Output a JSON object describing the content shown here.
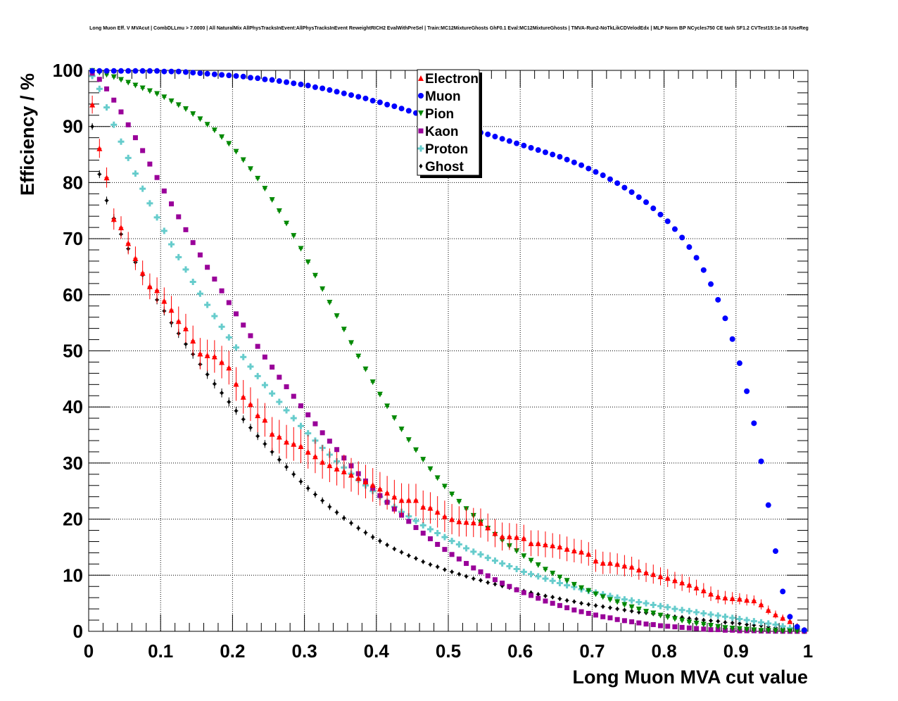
{
  "chart_data": {
    "type": "scatter",
    "title": "Long Muon Eff. V MVAcut | CombDLLmu > 7.0000 | All NaturalMix AllPhysTracksInEvent:AllPhysTracksInEvent ReweightRICH2 EvalWithPreSel | Train:MC12MixtureGhosts GhF0.1 Eval:MC12MixtureGhosts | TMVA-Run2-NoTkLikCDVelodEdx | MLP Norm BP NCycles750 CE tanh SF1.2 CVTest15:1e-16 !UseReg",
    "xlabel": "Long Muon MVA cut value",
    "ylabel": "Efficiency / %",
    "xlim": [
      0,
      1
    ],
    "ylim": [
      0,
      100
    ],
    "x_ticks": [
      "0",
      "0.1",
      "0.2",
      "0.3",
      "0.4",
      "0.5",
      "0.6",
      "0.7",
      "0.8",
      "0.9",
      "1"
    ],
    "y_ticks": [
      "0",
      "10",
      "20",
      "30",
      "40",
      "50",
      "60",
      "70",
      "80",
      "90",
      "100"
    ],
    "grid": true,
    "legend_position": "top-center",
    "x": [
      0.005,
      0.015,
      0.025,
      0.035,
      0.045,
      0.055,
      0.065,
      0.075,
      0.085,
      0.095,
      0.105,
      0.115,
      0.125,
      0.135,
      0.145,
      0.155,
      0.165,
      0.175,
      0.185,
      0.195,
      0.205,
      0.215,
      0.225,
      0.235,
      0.245,
      0.255,
      0.265,
      0.275,
      0.285,
      0.295,
      0.305,
      0.315,
      0.325,
      0.335,
      0.345,
      0.355,
      0.365,
      0.375,
      0.385,
      0.395,
      0.405,
      0.415,
      0.425,
      0.435,
      0.445,
      0.455,
      0.465,
      0.475,
      0.485,
      0.495,
      0.505,
      0.515,
      0.525,
      0.535,
      0.545,
      0.555,
      0.565,
      0.575,
      0.585,
      0.595,
      0.605,
      0.615,
      0.625,
      0.635,
      0.645,
      0.655,
      0.665,
      0.675,
      0.685,
      0.695,
      0.705,
      0.715,
      0.725,
      0.735,
      0.745,
      0.755,
      0.765,
      0.775,
      0.785,
      0.795,
      0.805,
      0.815,
      0.825,
      0.835,
      0.845,
      0.855,
      0.865,
      0.875,
      0.885,
      0.895,
      0.905,
      0.915,
      0.925,
      0.935,
      0.945,
      0.955,
      0.965,
      0.975,
      0.985,
      0.995
    ],
    "series": [
      {
        "name": "Electron",
        "color": "#ff0000",
        "marker": "triangle-up",
        "error_scale": 1.0,
        "values": [
          93.9,
          86.1,
          80.9,
          73.5,
          72.0,
          69.2,
          66.5,
          63.9,
          61.5,
          60.8,
          58.9,
          57.3,
          55.3,
          54.0,
          51.8,
          49.5,
          49.2,
          49.0,
          48.0,
          47.0,
          44.1,
          41.8,
          40.5,
          38.5,
          37.7,
          35.2,
          34.7,
          33.8,
          33.4,
          33.0,
          32.0,
          31.2,
          30.2,
          29.6,
          29.0,
          28.5,
          27.9,
          27.3,
          26.7,
          26.1,
          25.4,
          24.7,
          24.0,
          23.4,
          23.4,
          23.4,
          22.2,
          22.0,
          21.3,
          20.5,
          20.0,
          19.6,
          19.5,
          19.4,
          19.3,
          18.5,
          17.5,
          16.9,
          16.9,
          16.8,
          16.6,
          15.7,
          15.7,
          15.5,
          15.3,
          15.1,
          14.7,
          14.4,
          14.2,
          13.8,
          12.6,
          12.2,
          12.2,
          12.0,
          11.7,
          11.5,
          11.0,
          10.5,
          10.2,
          9.8,
          9.5,
          9.1,
          8.7,
          8.3,
          7.8,
          7.3,
          6.7,
          6.2,
          6.0,
          5.9,
          5.8,
          5.6,
          5.5,
          4.8,
          3.8,
          3.0,
          2.4,
          1.8,
          1.0,
          0.3
        ],
        "errors": [
          1.6,
          1.7,
          1.8,
          1.9,
          2.0,
          2.0,
          2.1,
          2.2,
          2.3,
          2.3,
          2.4,
          2.5,
          2.6,
          2.6,
          2.7,
          2.8,
          2.8,
          2.9,
          2.9,
          3.0,
          3.0,
          3.0,
          3.0,
          3.0,
          3.0,
          3.0,
          3.0,
          3.0,
          3.0,
          3.0,
          3.0,
          3.0,
          3.0,
          3.0,
          3.0,
          3.0,
          3.0,
          3.0,
          3.0,
          3.0,
          3.0,
          3.0,
          3.0,
          3.0,
          2.9,
          2.9,
          2.9,
          2.8,
          2.8,
          2.8,
          2.7,
          2.7,
          2.6,
          2.6,
          2.6,
          2.5,
          2.5,
          2.5,
          2.4,
          2.4,
          2.4,
          2.3,
          2.3,
          2.3,
          2.2,
          2.2,
          2.2,
          2.1,
          2.1,
          2.1,
          2.0,
          2.0,
          1.9,
          1.9,
          1.9,
          1.8,
          1.8,
          1.7,
          1.7,
          1.6,
          1.6,
          1.5,
          1.5,
          1.4,
          1.4,
          1.3,
          1.3,
          1.2,
          1.2,
          1.1,
          1.0,
          1.0,
          0.9,
          0.9,
          0.8,
          0.7,
          0.6,
          0.5,
          0.4,
          0.3
        ]
      },
      {
        "name": "Muon",
        "color": "#0000ff",
        "marker": "circle",
        "values": [
          99.9,
          99.9,
          99.9,
          99.9,
          99.9,
          99.9,
          99.9,
          99.9,
          99.9,
          99.9,
          99.8,
          99.8,
          99.8,
          99.7,
          99.6,
          99.5,
          99.4,
          99.3,
          99.2,
          99.1,
          99.0,
          98.9,
          98.7,
          98.6,
          98.4,
          98.3,
          98.1,
          97.9,
          97.7,
          97.5,
          97.3,
          97.0,
          96.8,
          96.5,
          96.2,
          95.9,
          95.6,
          95.3,
          95.0,
          94.6,
          94.3,
          93.9,
          93.6,
          93.2,
          92.8,
          92.4,
          92.0,
          91.6,
          91.2,
          90.8,
          90.5,
          90.1,
          89.7,
          89.3,
          88.9,
          88.6,
          88.2,
          87.8,
          87.4,
          87.0,
          86.6,
          86.2,
          85.8,
          85.4,
          85.0,
          84.6,
          84.1,
          83.6,
          83.1,
          82.5,
          81.9,
          81.3,
          80.6,
          79.9,
          79.1,
          78.3,
          77.4,
          76.5,
          75.4,
          74.3,
          73.1,
          71.7,
          70.2,
          68.5,
          66.6,
          64.4,
          61.9,
          59.1,
          55.8,
          52.1,
          47.8,
          42.8,
          37.1,
          30.3,
          22.5,
          14.3,
          7.1,
          2.6,
          0.8,
          0.2
        ]
      },
      {
        "name": "Pion",
        "color": "#008800",
        "marker": "triangle-down",
        "values": [
          99.9,
          99.6,
          99.2,
          98.8,
          98.3,
          97.8,
          97.3,
          96.8,
          96.3,
          95.8,
          95.2,
          94.5,
          93.8,
          93.1,
          92.2,
          91.3,
          90.3,
          89.3,
          88.1,
          86.9,
          85.5,
          84.0,
          82.4,
          80.7,
          78.9,
          76.9,
          74.9,
          72.7,
          70.5,
          68.2,
          65.8,
          63.4,
          61.0,
          58.6,
          56.2,
          53.8,
          51.4,
          49.0,
          46.7,
          44.4,
          42.2,
          40.1,
          38.0,
          36.0,
          34.1,
          32.3,
          30.6,
          28.9,
          27.3,
          25.8,
          24.4,
          23.1,
          21.8,
          20.6,
          19.4,
          18.3,
          17.2,
          16.2,
          15.2,
          14.3,
          13.4,
          12.6,
          11.8,
          11.0,
          10.3,
          9.6,
          9.0,
          8.3,
          7.7,
          7.2,
          6.6,
          6.1,
          5.6,
          5.2,
          4.7,
          4.3,
          3.9,
          3.5,
          3.2,
          2.8,
          2.5,
          2.2,
          1.9,
          1.6,
          1.4,
          1.2,
          1.0,
          0.8,
          0.6,
          0.5,
          0.4,
          0.3,
          0.2,
          0.1,
          0.1,
          0.05,
          0.02,
          0.01,
          0.0,
          0.0
        ]
      },
      {
        "name": "Kaon",
        "color": "#990099",
        "marker": "square",
        "values": [
          99.5,
          98.4,
          96.7,
          94.7,
          92.6,
          90.3,
          88.0,
          85.7,
          83.3,
          80.9,
          78.5,
          76.2,
          73.9,
          71.6,
          69.3,
          67.1,
          64.9,
          62.8,
          60.7,
          58.6,
          56.6,
          54.6,
          52.7,
          50.8,
          48.9,
          47.1,
          45.3,
          43.6,
          41.9,
          40.2,
          38.6,
          37.0,
          35.4,
          33.9,
          32.4,
          30.9,
          29.5,
          28.1,
          26.8,
          25.5,
          24.2,
          23.0,
          21.8,
          20.7,
          19.6,
          18.5,
          17.5,
          16.5,
          15.5,
          14.6,
          13.7,
          12.9,
          12.1,
          11.3,
          10.6,
          9.9,
          9.2,
          8.6,
          8.0,
          7.4,
          6.9,
          6.4,
          5.9,
          5.4,
          5.0,
          4.6,
          4.2,
          3.8,
          3.5,
          3.2,
          2.9,
          2.6,
          2.4,
          2.1,
          1.9,
          1.7,
          1.5,
          1.3,
          1.2,
          1.0,
          0.9,
          0.8,
          0.7,
          0.6,
          0.5,
          0.4,
          0.3,
          0.3,
          0.2,
          0.2,
          0.1,
          0.1,
          0.1,
          0.05,
          0.03,
          0.02,
          0.01,
          0.0,
          0.0,
          0.0
        ]
      },
      {
        "name": "Proton",
        "color": "#66cccc",
        "marker": "cross",
        "values": [
          99.0,
          96.7,
          93.4,
          90.3,
          87.3,
          84.4,
          81.6,
          78.9,
          76.3,
          73.8,
          71.4,
          69.0,
          66.7,
          64.5,
          62.3,
          60.2,
          58.2,
          56.2,
          54.3,
          52.4,
          50.6,
          48.9,
          47.2,
          45.5,
          43.9,
          42.4,
          40.9,
          39.4,
          38.0,
          36.6,
          35.3,
          34.0,
          32.7,
          31.5,
          30.3,
          29.2,
          28.1,
          27.0,
          26.0,
          25.0,
          24.0,
          23.1,
          22.2,
          21.3,
          20.5,
          19.7,
          18.9,
          18.2,
          17.5,
          16.8,
          16.1,
          15.5,
          14.8,
          14.2,
          13.7,
          13.1,
          12.6,
          12.1,
          11.6,
          11.1,
          10.6,
          10.2,
          9.8,
          9.4,
          9.0,
          8.6,
          8.2,
          7.9,
          7.5,
          7.2,
          6.9,
          6.6,
          6.3,
          6.0,
          5.7,
          5.5,
          5.2,
          5.0,
          4.7,
          4.5,
          4.3,
          4.0,
          3.8,
          3.6,
          3.4,
          3.2,
          3.0,
          2.8,
          2.6,
          2.4,
          2.2,
          2.0,
          1.8,
          1.6,
          1.4,
          1.2,
          0.9,
          0.6,
          0.3,
          0.1
        ]
      },
      {
        "name": "Ghost",
        "color": "#000000",
        "marker": "diamond",
        "error_scale": 1.0,
        "values": [
          90.0,
          81.5,
          76.8,
          73.6,
          70.8,
          68.2,
          65.8,
          63.5,
          61.3,
          59.1,
          57.1,
          55.0,
          53.1,
          51.2,
          49.4,
          47.6,
          45.8,
          44.1,
          42.5,
          40.9,
          39.3,
          37.8,
          36.3,
          34.8,
          33.4,
          32.0,
          30.6,
          29.3,
          28.0,
          26.7,
          25.5,
          24.4,
          23.3,
          22.2,
          21.2,
          20.2,
          19.3,
          18.4,
          17.6,
          16.8,
          16.1,
          15.4,
          14.7,
          14.1,
          13.5,
          13.0,
          12.4,
          11.9,
          11.5,
          11.0,
          10.6,
          10.2,
          9.8,
          9.4,
          9.1,
          8.7,
          8.4,
          8.1,
          7.8,
          7.5,
          7.2,
          6.9,
          6.6,
          6.3,
          6.1,
          5.8,
          5.5,
          5.3,
          5.0,
          4.8,
          4.6,
          4.4,
          4.2,
          4.0,
          3.8,
          3.6,
          3.4,
          3.3,
          3.1,
          2.9,
          2.8,
          2.6,
          2.5,
          2.3,
          2.2,
          2.0,
          1.9,
          1.8,
          1.6,
          1.5,
          1.4,
          1.2,
          1.1,
          1.0,
          0.8,
          0.7,
          0.6,
          0.4,
          0.3,
          0.2
        ],
        "errors": [
          0.6,
          0.7,
          0.7,
          0.8,
          0.8,
          0.8,
          0.8,
          0.8,
          0.8,
          0.8,
          0.8,
          0.8,
          0.8,
          0.8,
          0.8,
          0.8,
          0.8,
          0.8,
          0.8,
          0.8,
          0.7,
          0.7,
          0.7,
          0.7,
          0.7,
          0.7,
          0.7,
          0.7,
          0.6,
          0.6,
          0.6,
          0.6,
          0.6,
          0.6,
          0.5,
          0.5,
          0.5,
          0.5,
          0.5,
          0.5,
          0.5,
          0.4,
          0.4,
          0.4,
          0.4,
          0.4,
          0.4,
          0.4,
          0.4,
          0.3,
          0.3,
          0.3,
          0.3,
          0.3,
          0.3,
          0.3,
          0.3,
          0.3,
          0.3,
          0.3,
          0.3,
          0.3,
          0.3,
          0.3,
          0.2,
          0.2,
          0.2,
          0.2,
          0.2,
          0.2,
          0.2,
          0.2,
          0.2,
          0.2,
          0.2,
          0.2,
          0.2,
          0.2,
          0.2,
          0.2,
          0.2,
          0.2,
          0.2,
          0.2,
          0.2,
          0.2,
          0.1,
          0.1,
          0.1,
          0.1,
          0.1,
          0.1,
          0.1,
          0.1,
          0.1,
          0.1,
          0.1,
          0.1,
          0.1,
          0.1
        ]
      }
    ]
  }
}
